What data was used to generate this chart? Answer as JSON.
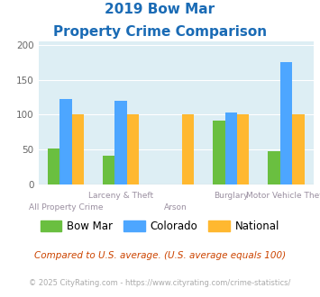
{
  "title_line1": "2019 Bow Mar",
  "title_line2": "Property Crime Comparison",
  "categories": [
    "All Property Crime",
    "Larceny & Theft",
    "Arson",
    "Burglary",
    "Motor Vehicle Theft"
  ],
  "bow_mar": [
    51,
    41,
    0,
    92,
    48
  ],
  "colorado": [
    123,
    120,
    0,
    103,
    175
  ],
  "national": [
    100,
    100,
    100,
    100,
    100
  ],
  "bow_mar_color": "#6abf40",
  "colorado_color": "#4da6ff",
  "national_color": "#ffb830",
  "bg_color": "#ddeef4",
  "title_color": "#1a6bb5",
  "xlabel_color": "#9a8fa0",
  "ylim": [
    0,
    205
  ],
  "yticks": [
    0,
    50,
    100,
    150,
    200
  ],
  "bar_width": 0.22,
  "footnote": "Compared to U.S. average. (U.S. average equals 100)",
  "copyright": "© 2025 CityRating.com - https://www.cityrating.com/crime-statistics/",
  "footnote_color": "#cc4400",
  "copyright_color": "#aaaaaa",
  "legend_labels": [
    "Bow Mar",
    "Colorado",
    "National"
  ],
  "top_x_labels": [
    "",
    "Larceny & Theft",
    "",
    "Burglary",
    "Motor Vehicle Theft"
  ],
  "bot_x_labels": [
    "All Property Crime",
    "",
    "Arson",
    "",
    ""
  ]
}
